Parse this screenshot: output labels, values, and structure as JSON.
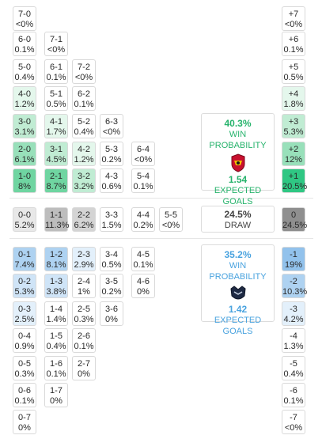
{
  "colors": {
    "home_accent": "#27b36c",
    "away_accent": "#4aa3df",
    "draw_accent": "#444444"
  },
  "home_scores": [
    {
      "score": "7-0",
      "pct": "<0%",
      "shade": 0
    },
    {
      "score": "6-0",
      "pct": "0.1%",
      "shade": 0
    },
    {
      "score": "7-1",
      "pct": "<0%",
      "shade": 0
    },
    {
      "score": "5-0",
      "pct": "0.4%",
      "shade": 0
    },
    {
      "score": "6-1",
      "pct": "0.1%",
      "shade": 0
    },
    {
      "score": "7-2",
      "pct": "<0%",
      "shade": 0
    },
    {
      "score": "4-0",
      "pct": "1.2%",
      "shade": 1
    },
    {
      "score": "5-1",
      "pct": "0.5%",
      "shade": 0
    },
    {
      "score": "6-2",
      "pct": "0.1%",
      "shade": 0
    },
    {
      "score": "3-0",
      "pct": "3.1%",
      "shade": 2
    },
    {
      "score": "4-1",
      "pct": "1.7%",
      "shade": 1
    },
    {
      "score": "5-2",
      "pct": "0.4%",
      "shade": 0
    },
    {
      "score": "6-3",
      "pct": "<0%",
      "shade": 0
    },
    {
      "score": "2-0",
      "pct": "6.1%",
      "shade": 3
    },
    {
      "score": "3-1",
      "pct": "4.5%",
      "shade": 2
    },
    {
      "score": "4-2",
      "pct": "1.2%",
      "shade": 1
    },
    {
      "score": "5-3",
      "pct": "0.2%",
      "shade": 0
    },
    {
      "score": "6-4",
      "pct": "<0%",
      "shade": 0
    },
    {
      "score": "1-0",
      "pct": "8%",
      "shade": 4
    },
    {
      "score": "2-1",
      "pct": "8.7%",
      "shade": 4
    },
    {
      "score": "3-2",
      "pct": "3.2%",
      "shade": 2
    },
    {
      "score": "4-3",
      "pct": "0.6%",
      "shade": 0
    },
    {
      "score": "5-4",
      "pct": "0.1%",
      "shade": 0
    }
  ],
  "home_margins": [
    {
      "label": "+7",
      "pct": "<0%",
      "shade": 0
    },
    {
      "label": "+6",
      "pct": "0.1%",
      "shade": 0
    },
    {
      "label": "+5",
      "pct": "0.5%",
      "shade": 0
    },
    {
      "label": "+4",
      "pct": "1.8%",
      "shade": 1
    },
    {
      "label": "+3",
      "pct": "5.3%",
      "shade": 2
    },
    {
      "label": "+2",
      "pct": "12%",
      "shade": 3
    },
    {
      "label": "+1",
      "pct": "20.5%",
      "shade": 5
    }
  ],
  "home_summary": {
    "win_pct": "40.3%",
    "win_label": "WIN PROBABILITY",
    "xg": "1.54",
    "xg_label": "EXPECTED GOALS"
  },
  "draw_scores": [
    {
      "score": "0-0",
      "pct": "5.2%",
      "shade": 1
    },
    {
      "score": "1-1",
      "pct": "11.3%",
      "shade": 3
    },
    {
      "score": "2-2",
      "pct": "6.2%",
      "shade": 2
    },
    {
      "score": "3-3",
      "pct": "1.5%",
      "shade": 0
    },
    {
      "score": "4-4",
      "pct": "0.2%",
      "shade": 0
    },
    {
      "score": "5-5",
      "pct": "<0%",
      "shade": 0
    }
  ],
  "draw_summary": {
    "pct": "24.5%",
    "label": "DRAW",
    "margin_label": "0",
    "margin_pct": "24.5%"
  },
  "away_scores": [
    {
      "score": "0-1",
      "pct": "7.4%",
      "shade": 3
    },
    {
      "score": "1-2",
      "pct": "8.1%",
      "shade": 3
    },
    {
      "score": "2-3",
      "pct": "2.9%",
      "shade": 1
    },
    {
      "score": "3-4",
      "pct": "0.5%",
      "shade": 0
    },
    {
      "score": "4-5",
      "pct": "0.1%",
      "shade": 0
    },
    {
      "score": "0-2",
      "pct": "5.3%",
      "shade": 2
    },
    {
      "score": "1-3",
      "pct": "3.8%",
      "shade": 2
    },
    {
      "score": "2-4",
      "pct": "1%",
      "shade": 0
    },
    {
      "score": "3-5",
      "pct": "0.2%",
      "shade": 0
    },
    {
      "score": "4-6",
      "pct": "0%",
      "shade": 0
    },
    {
      "score": "0-3",
      "pct": "2.5%",
      "shade": 1
    },
    {
      "score": "1-4",
      "pct": "1.4%",
      "shade": 0
    },
    {
      "score": "2-5",
      "pct": "0.3%",
      "shade": 0
    },
    {
      "score": "3-6",
      "pct": "0%",
      "shade": 0
    },
    {
      "score": "0-4",
      "pct": "0.9%",
      "shade": 0
    },
    {
      "score": "1-5",
      "pct": "0.4%",
      "shade": 0
    },
    {
      "score": "2-6",
      "pct": "0.1%",
      "shade": 0
    },
    {
      "score": "0-5",
      "pct": "0.3%",
      "shade": 0
    },
    {
      "score": "1-6",
      "pct": "0.1%",
      "shade": 0
    },
    {
      "score": "2-7",
      "pct": "0%",
      "shade": 0
    },
    {
      "score": "0-6",
      "pct": "0.1%",
      "shade": 0
    },
    {
      "score": "1-7",
      "pct": "0%",
      "shade": 0
    },
    {
      "score": "0-7",
      "pct": "0%",
      "shade": 0
    }
  ],
  "away_margins": [
    {
      "label": "-1",
      "pct": "19%",
      "shade": 4
    },
    {
      "label": "-2",
      "pct": "10.3%",
      "shade": 3
    },
    {
      "label": "-3",
      "pct": "4.2%",
      "shade": 1
    },
    {
      "label": "-4",
      "pct": "1.3%",
      "shade": 0
    },
    {
      "label": "-5",
      "pct": "0.4%",
      "shade": 0
    },
    {
      "label": "-6",
      "pct": "0.1%",
      "shade": 0
    },
    {
      "label": "-7",
      "pct": "<0%",
      "shade": 0
    }
  ],
  "away_summary": {
    "win_pct": "35.2%",
    "win_label": "WIN PROBABILITY",
    "xg": "1.42",
    "xg_label": "EXPECTED GOALS"
  },
  "icons": {
    "home_logo": "club-crest-red-icon",
    "away_logo": "club-crest-blue-icon"
  }
}
